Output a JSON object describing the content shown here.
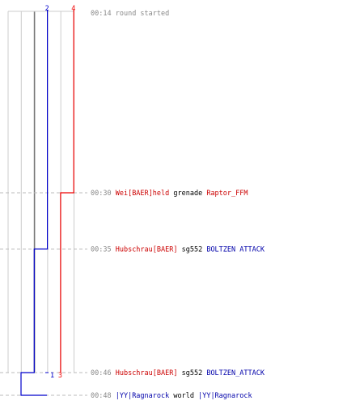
{
  "chart_data": {
    "type": "line",
    "title": "",
    "events": [
      {
        "time": "00:14",
        "parts": [
          {
            "text": "round started",
            "color": "#888888"
          }
        ]
      },
      {
        "time": "00:30",
        "parts": [
          {
            "text": "Wei[BAER]held",
            "color": "#cc0000"
          },
          {
            "text": "grenade",
            "color": "#000000"
          },
          {
            "text": "Raptor_FFM",
            "color": "#cc0000"
          }
        ]
      },
      {
        "time": "00:35",
        "parts": [
          {
            "text": "Hubschrau[BAER]",
            "color": "#cc0000"
          },
          {
            "text": "sg552",
            "color": "#000000"
          },
          {
            "text": "BOLTZEN ATTACK",
            "color": "#0000aa"
          }
        ]
      },
      {
        "time": "00:46",
        "parts": [
          {
            "text": "Hubschrau[BAER]",
            "color": "#cc0000"
          },
          {
            "text": "sg552",
            "color": "#000000"
          },
          {
            "text": "BOLTZEN_ATTACK",
            "color": "#0000aa"
          }
        ]
      },
      {
        "time": "00:48",
        "parts": [
          {
            "text": "|YY|Ragnarock",
            "color": "#0000aa"
          },
          {
            "text": "world",
            "color": "#000000"
          },
          {
            "text": "|YY|Ragnarock",
            "color": "#0000aa"
          }
        ]
      }
    ],
    "series": [
      {
        "color": "#0000cc",
        "points": [
          [
            "00:14",
            2
          ],
          [
            "00:35",
            1
          ],
          [
            "00:46",
            0
          ],
          [
            "00:48",
            -1
          ]
        ],
        "labels": [
          {
            "text": "2",
            "at": "start"
          },
          {
            "text": "1",
            "at": "00:46"
          }
        ]
      },
      {
        "color": "#ee0000",
        "points": [
          [
            "00:14",
            4
          ],
          [
            "00:30",
            3
          ]
        ],
        "labels": [
          {
            "text": "4",
            "at": "start"
          },
          {
            "text": "3",
            "at": "end"
          }
        ]
      }
    ],
    "grid_columns": 6,
    "grid": true
  }
}
